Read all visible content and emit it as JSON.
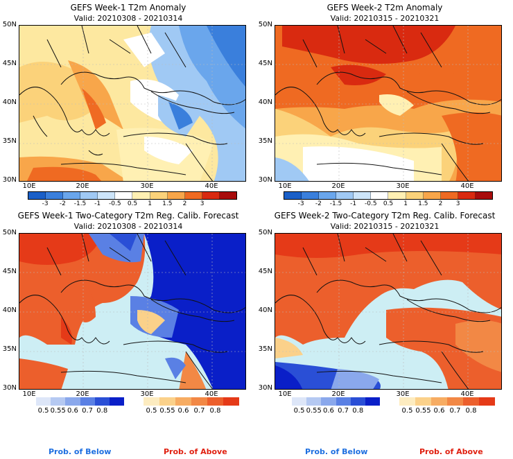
{
  "panels": [
    {
      "title": "GEFS Week-1 T2m Anomaly",
      "valid": "Valid: 20210308 - 20210314"
    },
    {
      "title": "GEFS Week-2 T2m Anomaly",
      "valid": "Valid: 20210315 - 20210321"
    },
    {
      "title": "GEFS Week-1 Two-Category T2m Reg. Calib. Forecast",
      "valid": "Valid: 20210308 - 20210314"
    },
    {
      "title": "GEFS Week-2 Two-Category T2m Reg. Calib. Forecast",
      "valid": "Valid: 20210315 - 20210321"
    }
  ],
  "lat_labels": [
    "50N",
    "45N",
    "40N",
    "35N",
    "30N"
  ],
  "lon_labels": [
    "10E",
    "20E",
    "30E",
    "40E"
  ],
  "anomaly_colorbar": {
    "labels": [
      "-3",
      "-2",
      "-1.5",
      "-1",
      "-0.5",
      "0.5",
      "1",
      "1.5",
      "2",
      "3"
    ],
    "colors": [
      "#1a5fc8",
      "#3a7fdc",
      "#6aa6ec",
      "#a0c9f4",
      "#cde5fa",
      "#ffffff",
      "#fff0b3",
      "#fbd27a",
      "#f8a64a",
      "#ef6a22",
      "#d92a10",
      "#a80c0c"
    ]
  },
  "prob_below_colorbar": {
    "labels": [
      "0.5",
      "0.55",
      "0.6",
      "0.7",
      "0.8"
    ],
    "colors": [
      "#dde6f8",
      "#b5c9f2",
      "#8aa8ec",
      "#5a80e4",
      "#2a4fd6",
      "#0a1fc8"
    ]
  },
  "prob_above_colorbar": {
    "labels": [
      "0.5",
      "0.55",
      "0.6",
      "0.7",
      "0.8"
    ],
    "colors": [
      "#fdecc0",
      "#fbd18a",
      "#f7ac62",
      "#f28845",
      "#ec5f2c",
      "#e53a18"
    ]
  },
  "footer": {
    "below": "Prob. of Below",
    "above": "Prob. of Above"
  },
  "colors": {
    "below_text": "#1e6fe0",
    "above_text": "#e02010",
    "sea_prob": "#cdeef4"
  }
}
